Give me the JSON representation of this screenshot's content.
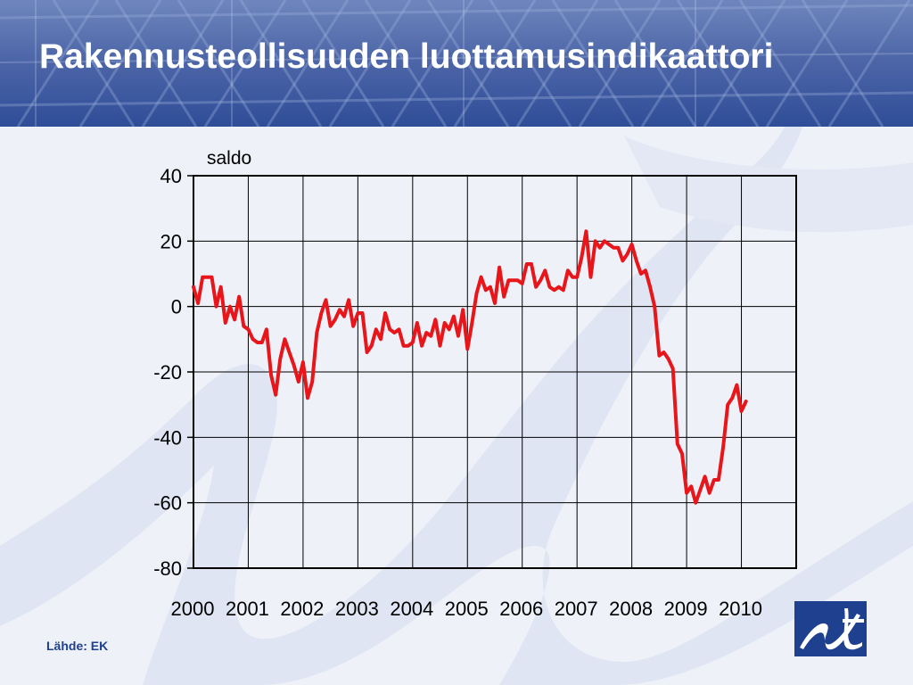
{
  "slide": {
    "title": "Rakennusteollisuuden luottamusindikaattori",
    "source": "Lähde: EK",
    "colors": {
      "header": "#3a569c",
      "title_text": "#ffffff",
      "background": "#eef1f8",
      "series": "#e8161b",
      "source_text": "#1f3f8f",
      "logo": "#1f3f8f"
    },
    "logo_icon": "ek-logo-icon"
  },
  "chart_data": {
    "type": "line",
    "title": "",
    "xlabel": "",
    "ylabel": "saldo",
    "ylim": [
      -80,
      40
    ],
    "yticks": [
      40,
      20,
      0,
      -20,
      -40,
      -60,
      -80
    ],
    "xlim": [
      2000,
      2011
    ],
    "xticks": [
      "2000",
      "2001",
      "2002",
      "2003",
      "2004",
      "2005",
      "2006",
      "2007",
      "2008",
      "2009",
      "2010"
    ],
    "grid": true,
    "legend": "none",
    "series": [
      {
        "color": "#e8161b",
        "frequency": "monthly",
        "start": "2000-01",
        "values": [
          6,
          1,
          9,
          9,
          9,
          0,
          6,
          -5,
          0,
          -4,
          3,
          -6,
          -7,
          -10,
          -11,
          -11,
          -7,
          -21,
          -27,
          -16,
          -10,
          -14,
          -18,
          -23,
          -17,
          -28,
          -23,
          -8,
          -2,
          2,
          -6,
          -4,
          -1,
          -3,
          2,
          -6,
          -2,
          -2,
          -14,
          -12,
          -7,
          -10,
          -2,
          -7,
          -8,
          -7,
          -12,
          -12,
          -11,
          -5,
          -12,
          -8,
          -9,
          -4,
          -12,
          -5,
          -7,
          -3,
          -9,
          -1,
          -13,
          -5,
          4,
          9,
          5,
          6,
          1,
          12,
          3,
          8,
          8,
          8,
          7,
          13,
          13,
          6,
          8,
          11,
          6,
          5,
          6,
          5,
          11,
          9,
          9,
          15,
          23,
          9,
          20,
          18,
          20,
          19,
          18,
          18,
          14,
          16,
          19,
          14,
          10,
          11,
          6,
          0,
          -15,
          -14,
          -16,
          -19,
          -42,
          -45,
          -57,
          -55,
          -60,
          -56,
          -52,
          -57,
          -53,
          -53,
          -43,
          -30,
          -28,
          -24,
          -32,
          -29
        ]
      }
    ]
  }
}
